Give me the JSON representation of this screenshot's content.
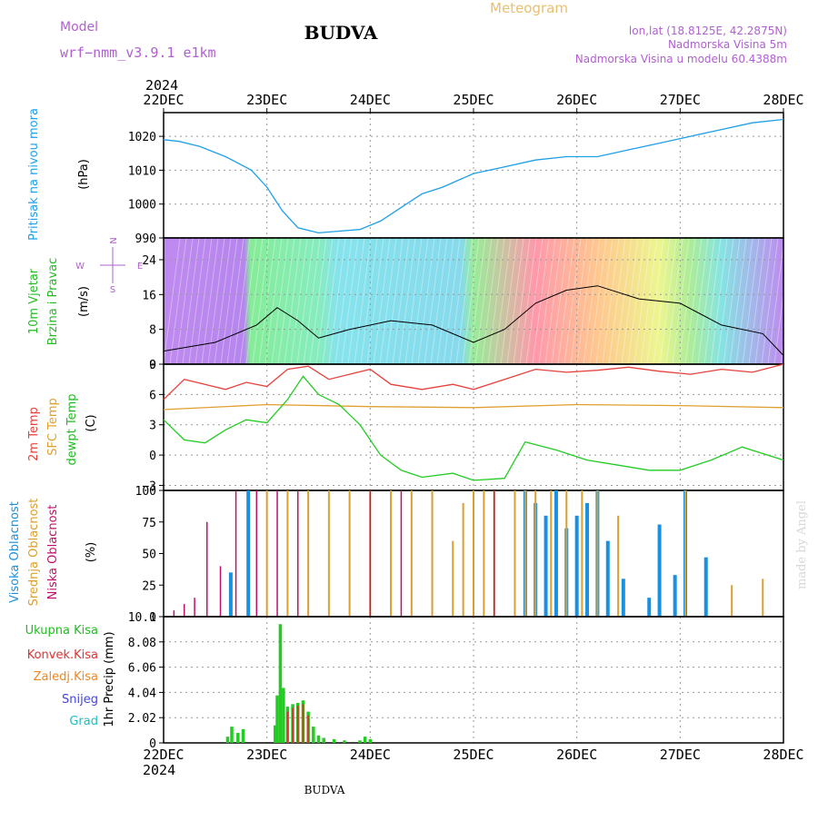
{
  "header": {
    "model_label": "Model",
    "model_name": "wrf−nmm_v3.9.1  e1km",
    "title": "BUDVA",
    "meteogram_label": "Meteogram",
    "lonlat": "lon,lat (18.8125E, 42.2875N)",
    "elevation": "Nadmorska Visina 5m",
    "model_elevation": "Nadmorska Visina u modelu 60.4388m"
  },
  "footer": {
    "station": "BUDVA",
    "watermark": "made by Angel"
  },
  "colors": {
    "pressure": "#1f9fe8",
    "temp2m": "#e8413c",
    "sfc_temp": "#e0a030",
    "dewpt": "#22cc22",
    "high_cloud": "#1a90e0",
    "mid_cloud": "#d9a030",
    "low_cloud": "#c0106a",
    "precip_total": "#22cc22",
    "precip_conv": "#dd3333",
    "precip_frozen": "#ee8822",
    "snow": "#4444dd",
    "hail": "#22bbbb"
  },
  "chart_data": [
    {
      "type": "line",
      "panel": "pressure",
      "ylabel_lines": [
        "Pritisak na nivou mora",
        "(hPa)"
      ],
      "xlabels_top": [
        "22DEC",
        "23DEC",
        "24DEC",
        "25DEC",
        "26DEC",
        "27DEC",
        "28DEC"
      ],
      "year_label": "2024",
      "x_range_days": [
        0,
        6
      ],
      "ylim": [
        990,
        1027
      ],
      "yticks": [
        990,
        1000,
        1010,
        1020
      ],
      "grid": true,
      "series": [
        {
          "x": [
            0,
            0.15,
            0.35,
            0.6,
            0.85,
            1.0,
            1.15,
            1.3,
            1.5,
            1.7,
            1.9,
            2.1,
            2.3,
            2.5,
            2.7,
            3.0,
            3.3,
            3.6,
            3.9,
            4.2,
            4.5,
            4.8,
            5.1,
            5.4,
            5.7,
            6.0
          ],
          "values": [
            1019,
            1018.5,
            1017,
            1014,
            1010,
            1005,
            998,
            993,
            991.5,
            992,
            992.5,
            995,
            999,
            1003,
            1005,
            1009,
            1011,
            1013,
            1014,
            1014,
            1016,
            1018,
            1020,
            1022,
            1024,
            1025
          ]
        }
      ]
    },
    {
      "type": "line",
      "panel": "wind",
      "ylabel_lines": [
        "10m Vjetar",
        "Brzina i Pravac",
        "(m/s)"
      ],
      "compass_labels": [
        "N",
        "W",
        "E",
        "S"
      ],
      "ylim": [
        0,
        29
      ],
      "yticks": [
        0,
        8,
        16,
        24
      ],
      "grid": true,
      "series": [
        {
          "name": "speed",
          "x": [
            0,
            0.5,
            0.9,
            1.1,
            1.3,
            1.5,
            1.8,
            2.2,
            2.6,
            3.0,
            3.3,
            3.6,
            3.9,
            4.2,
            4.6,
            5.0,
            5.4,
            5.8,
            6.0
          ],
          "values": [
            3,
            5,
            9,
            13,
            10,
            6,
            8,
            10,
            9,
            5,
            8,
            14,
            17,
            18,
            15,
            14,
            9,
            7,
            2
          ]
        }
      ]
    },
    {
      "type": "line",
      "panel": "temperature",
      "ylabel_lines": [
        "2m Temp",
        "SFC Temp",
        "dewpt Temp",
        "(C)"
      ],
      "ylim": [
        -3.5,
        9
      ],
      "yticks": [
        -3,
        0,
        3,
        6,
        9
      ],
      "grid": true,
      "series": [
        {
          "name": "2m Temp",
          "x": [
            0,
            0.2,
            0.4,
            0.6,
            0.8,
            1.0,
            1.2,
            1.4,
            1.6,
            1.8,
            2.0,
            2.2,
            2.5,
            2.8,
            3.0,
            3.3,
            3.6,
            3.9,
            4.2,
            4.5,
            4.8,
            5.1,
            5.4,
            5.7,
            6.0
          ],
          "values": [
            5.5,
            7.5,
            7,
            6.5,
            7.2,
            6.8,
            8.5,
            8.8,
            7.5,
            8,
            8.5,
            7,
            6.5,
            7,
            6.5,
            7.5,
            8.5,
            8.2,
            8.4,
            8.7,
            8.3,
            8,
            8.5,
            8.2,
            9
          ]
        },
        {
          "name": "SFC Temp",
          "x": [
            0,
            1,
            2,
            3,
            4,
            5,
            6
          ],
          "values": [
            4.5,
            5,
            4.8,
            4.7,
            5,
            4.9,
            4.7
          ]
        },
        {
          "name": "dewpt Temp",
          "x": [
            0,
            0.2,
            0.4,
            0.6,
            0.8,
            1.0,
            1.2,
            1.35,
            1.5,
            1.7,
            1.9,
            2.1,
            2.3,
            2.5,
            2.8,
            3.0,
            3.3,
            3.5,
            3.8,
            4.1,
            4.4,
            4.7,
            5.0,
            5.3,
            5.6,
            6.0
          ],
          "values": [
            3.5,
            1.5,
            1.2,
            2.5,
            3.5,
            3.2,
            5.5,
            7.8,
            6,
            5,
            3,
            0,
            -1.5,
            -2.2,
            -1.8,
            -2.5,
            -2.3,
            1.3,
            0.5,
            -0.5,
            -1,
            -1.5,
            -1.5,
            -0.5,
            0.8,
            -0.5
          ]
        }
      ]
    },
    {
      "type": "bar",
      "panel": "clouds",
      "ylabel_lines": [
        "Visoka Oblacnost",
        "Srednja Oblacnost",
        "Niska Oblacnost",
        "(%)"
      ],
      "ylim": [
        0,
        100
      ],
      "yticks": [
        0,
        25,
        50,
        75,
        100
      ],
      "series": [
        {
          "name": "Visoka Oblacnost",
          "x": [
            0.65,
            0.82,
            3.5,
            3.6,
            3.7,
            3.8,
            3.9,
            4.0,
            4.1,
            4.2,
            4.3,
            4.45,
            4.7,
            4.8,
            4.95,
            5.05,
            5.25
          ],
          "values": [
            35,
            100,
            100,
            90,
            80,
            100,
            70,
            80,
            90,
            100,
            60,
            30,
            15,
            73,
            33,
            100,
            47
          ]
        },
        {
          "name": "Srednja Oblacnost",
          "x": [
            1.0,
            1.2,
            1.4,
            1.6,
            1.8,
            2.0,
            2.2,
            2.4,
            2.6,
            2.8,
            2.9,
            3.0,
            3.1,
            3.2,
            3.4,
            3.5,
            3.6,
            3.75,
            3.9,
            4.05,
            4.2,
            4.4,
            5.05,
            5.5,
            5.8
          ],
          "values": [
            100,
            100,
            100,
            100,
            100,
            100,
            100,
            100,
            100,
            60,
            90,
            100,
            100,
            100,
            100,
            100,
            100,
            100,
            100,
            100,
            100,
            80,
            100,
            25,
            30
          ]
        },
        {
          "name": "Niska Oblacnost",
          "x": [
            0.1,
            0.2,
            0.3,
            0.42,
            0.55,
            0.7,
            0.9,
            1.1,
            1.3,
            2.0,
            2.3,
            3.2
          ],
          "values": [
            5,
            10,
            15,
            75,
            40,
            100,
            100,
            100,
            100,
            100,
            100,
            100
          ]
        }
      ]
    },
    {
      "type": "bar",
      "panel": "precipitation",
      "ylabel": "1hr Precip (mm)",
      "legend": [
        "Ukupna Kisa",
        "Konvek.Kisa",
        "Zaledj.Kisa",
        "Snijeg",
        "Grad"
      ],
      "ylim": [
        0,
        10.1
      ],
      "yticks": [
        0,
        2.02,
        4.04,
        6.06,
        8.08,
        10.1
      ],
      "xlabels_bottom": [
        "22DEC",
        "23DEC",
        "24DEC",
        "25DEC",
        "26DEC",
        "27DEC",
        "28DEC"
      ],
      "year_label": "2024",
      "grid": true,
      "series": [
        {
          "name": "Ukupna Kisa",
          "x": [
            0.62,
            0.66,
            0.72,
            0.77,
            1.08,
            1.1,
            1.13,
            1.16,
            1.2,
            1.25,
            1.3,
            1.35,
            1.4,
            1.45,
            1.5,
            1.55,
            1.65,
            1.75,
            1.9,
            1.95,
            2.0
          ],
          "values": [
            0.5,
            1.3,
            0.8,
            1.1,
            1.4,
            3.8,
            9.5,
            4.4,
            2.9,
            3.1,
            3.2,
            3.4,
            2.5,
            1.3,
            0.6,
            0.4,
            0.3,
            0.2,
            0.2,
            0.5,
            0.3
          ]
        },
        {
          "name": "Konvek.Kisa",
          "x": [
            1.2,
            1.25,
            1.3,
            1.35,
            1.4
          ],
          "values": [
            2.5,
            2.8,
            3.0,
            3.1,
            2.2
          ]
        }
      ]
    }
  ]
}
